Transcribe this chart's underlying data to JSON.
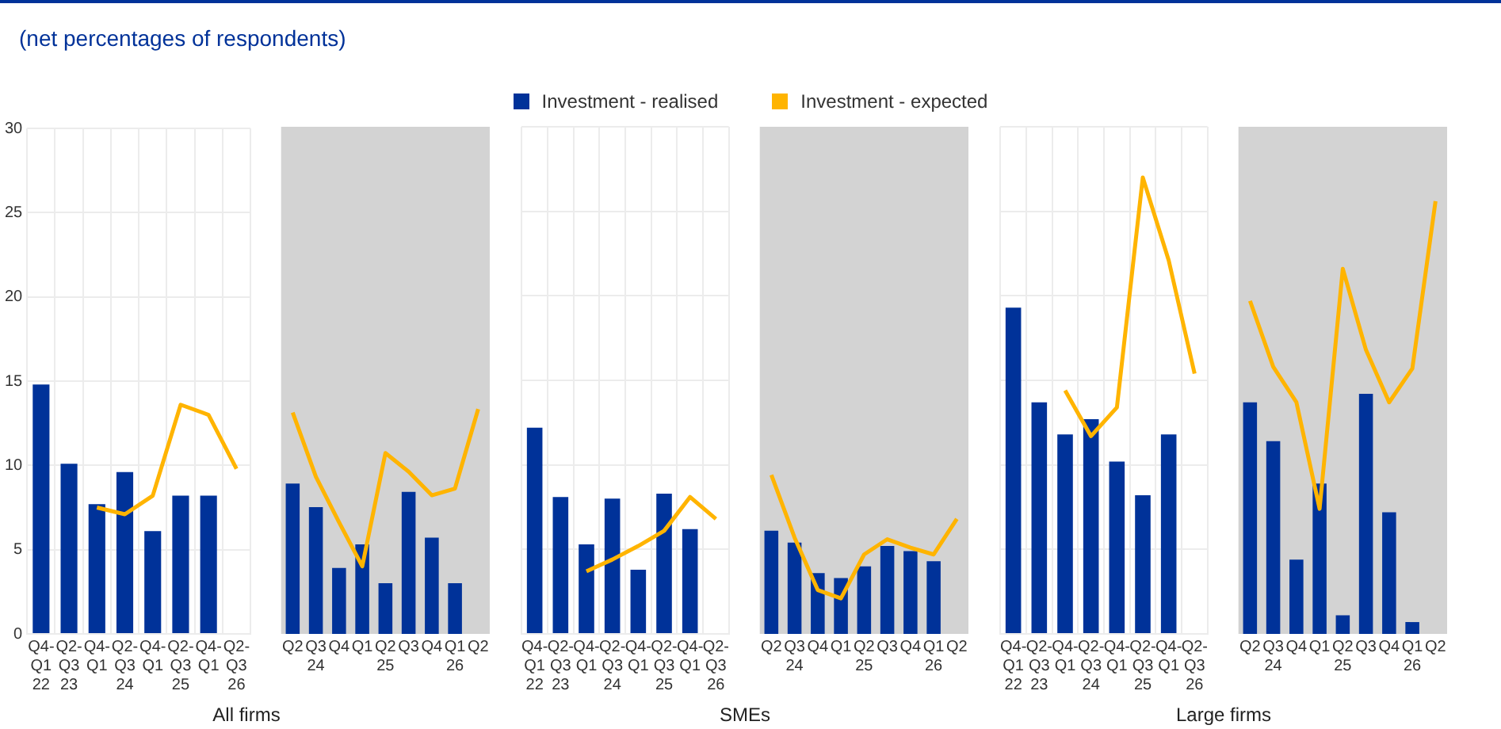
{
  "chart_data": [
    {
      "type": "bar",
      "subtitle": "(net percentages of respondents)",
      "legend": "top",
      "xlabel": "All firms",
      "categories": [
        "Q4-\nQ1\n22",
        "Q2-\nQ3\n23",
        "Q4-\nQ1",
        "Q2-\nQ3\n24",
        "Q4-\nQ1",
        "Q2-\nQ3\n25",
        "Q4-\nQ1",
        "Q2-\nQ3\n26"
      ],
      "series": [
        {
          "name": "Investment - realised",
          "color": "#003299",
          "values": [
            14.8,
            10.1,
            7.7,
            9.6,
            6.1,
            8.2,
            8.2,
            null
          ]
        },
        {
          "name": "Investment - expected",
          "type": "line",
          "color": "#ffb400",
          "values": [
            null,
            null,
            7.5,
            7.1,
            8.2,
            13.6,
            13.0,
            9.8
          ]
        }
      ],
      "ylim": [
        0,
        30
      ],
      "yticks": [
        0,
        5,
        10,
        15,
        20,
        25,
        30
      ],
      "grid": true
    },
    {
      "type": "bar",
      "categories": [
        "Q2",
        "Q3\n24",
        "Q4",
        "Q1",
        "Q2\n25",
        "Q3",
        "Q4",
        "Q1\n26",
        "Q2"
      ],
      "series": [
        {
          "color": "#003299",
          "values": [
            8.9,
            7.5,
            3.9,
            5.3,
            3.0,
            8.4,
            5.7,
            3.0,
            null
          ]
        },
        {
          "type": "line",
          "color": "#ffb400",
          "values": [
            13.1,
            9.3,
            6.6,
            4.0,
            10.7,
            9.6,
            8.2,
            8.6,
            13.3
          ]
        }
      ],
      "ylim": [
        0,
        30
      ],
      "yticks": [
        0,
        5,
        10,
        15,
        20,
        25,
        30
      ],
      "tick_labels": "x",
      "bands": [
        {
          "axis": "y",
          "from": 0,
          "to": 30,
          "color": "#d3d3d3"
        }
      ]
    },
    {
      "type": "bar",
      "xlabel": "SMEs",
      "categories": [
        "Q4-\nQ1\n22",
        "Q2-\nQ3\n23",
        "Q4-\nQ1",
        "Q2-\nQ3\n24",
        "Q4-\nQ1",
        "Q2-\nQ3\n25",
        "Q4-\nQ1",
        "Q2-\nQ3\n26"
      ],
      "series": [
        {
          "color": "#003299",
          "values": [
            12.2,
            8.1,
            5.3,
            8.0,
            3.8,
            8.3,
            6.2,
            null
          ]
        },
        {
          "type": "line",
          "color": "#ffb400",
          "values": [
            null,
            null,
            3.7,
            4.4,
            5.2,
            6.1,
            8.1,
            6.8
          ]
        }
      ],
      "ylim": [
        0,
        30
      ],
      "yticks": [
        0,
        5,
        10,
        15,
        20,
        25,
        30
      ],
      "tick_labels": "x",
      "grid": true
    },
    {
      "type": "bar",
      "categories": [
        "Q2",
        "Q3\n24",
        "Q4",
        "Q1",
        "Q2\n25",
        "Q3",
        "Q4",
        "Q1\n26",
        "Q2"
      ],
      "series": [
        {
          "color": "#003299",
          "values": [
            6.1,
            5.4,
            3.6,
            3.3,
            4.0,
            5.2,
            4.9,
            4.3,
            null
          ]
        },
        {
          "type": "line",
          "color": "#ffb400",
          "values": [
            9.4,
            5.7,
            2.6,
            2.1,
            4.7,
            5.6,
            5.1,
            4.7,
            6.8
          ]
        }
      ],
      "ylim": [
        0,
        30
      ],
      "yticks": [
        0,
        5,
        10,
        15,
        20,
        25,
        30
      ],
      "tick_labels": "x",
      "bands": [
        {
          "axis": "y",
          "from": 0,
          "to": 30,
          "color": "#d3d3d3"
        }
      ]
    },
    {
      "type": "bar",
      "xlabel": "Large firms",
      "categories": [
        "Q4-\nQ1\n22",
        "Q2-\nQ3\n23",
        "Q4-\nQ1",
        "Q2-\nQ3\n24",
        "Q4-\nQ1",
        "Q2-\nQ3\n25",
        "Q4-\nQ1",
        "Q2-\nQ3\n26"
      ],
      "series": [
        {
          "color": "#003299",
          "values": [
            19.3,
            13.7,
            11.8,
            12.7,
            10.2,
            8.2,
            11.8,
            null
          ]
        },
        {
          "type": "line",
          "color": "#ffb400",
          "values": [
            null,
            null,
            14.4,
            11.7,
            13.4,
            27.0,
            22.1,
            15.4
          ]
        }
      ],
      "ylim": [
        0,
        30
      ],
      "yticks": [
        0,
        5,
        10,
        15,
        20,
        25,
        30
      ],
      "tick_labels": "x",
      "grid": true
    },
    {
      "type": "bar",
      "categories": [
        "Q2",
        "Q3\n24",
        "Q4",
        "Q1",
        "Q2\n25",
        "Q3",
        "Q4",
        "Q1\n26",
        "Q2"
      ],
      "series": [
        {
          "color": "#003299",
          "values": [
            13.7,
            11.4,
            4.4,
            8.9,
            1.1,
            14.2,
            7.2,
            0.7,
            null
          ]
        },
        {
          "type": "line",
          "color": "#ffb400",
          "values": [
            19.7,
            15.8,
            13.7,
            7.4,
            21.6,
            16.8,
            13.7,
            15.7,
            25.6
          ]
        }
      ],
      "ylim": [
        0,
        30
      ],
      "yticks": [
        0,
        5,
        10,
        15,
        20,
        25,
        30
      ],
      "tick_labels": "x",
      "bands": [
        {
          "axis": "y",
          "from": 0,
          "to": 30,
          "color": "#d3d3d3"
        }
      ]
    }
  ]
}
